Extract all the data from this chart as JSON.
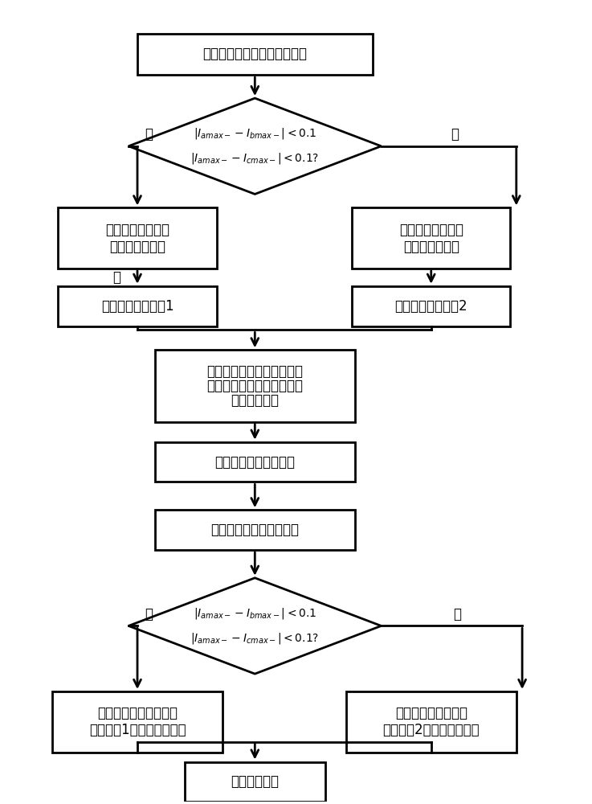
{
  "bg_color": "#ffffff",
  "box_color": "#ffffff",
  "box_edge_color": "#000000",
  "text_color": "#000000",
  "line_width": 2.0,
  "font_size": 12,
  "start_text": "采集训练系统的十三项特征値",
  "d1_line1": "$|I_{amax-}-I_{bmax-}|<0.1$",
  "d1_line2": "$|I_{amax-}-I_{cmax-}|<0.1?$",
  "bl1_line1": "归一化处理第一类",
  "bl1_line2": "故障下的特征値",
  "br1_line1": "归一化处理第二类",
  "br1_line2": "故障下的特征値",
  "bl2_text": "数据训练，得模型1",
  "br2_text": "数据训练，得模型2",
  "bm1_line1": "运用滑窗迭代判据判断系统",
  "bm1_line2": "是否发生故障并采集所需识",
  "bm1_line3": "别系统特征値",
  "bm2_text": "剖除采集数据中的坏値",
  "bm3_text": "输入所需识别系统特征値",
  "d2_line1": "$|I_{amax-}-I_{bmax-}|<0.1$",
  "d2_line2": "$|I_{amax-}-I_{cmax-}|<0.1?$",
  "bl3_line1": "待测组特征値归一化，",
  "bl3_line2": "并在模型1中进行故障识别",
  "br3_line1": "待测组特征値归一化",
  "br3_line2": "并在模型2中进行故障识别",
  "end_text": "得到故障类型",
  "yes": "是",
  "no": "否"
}
